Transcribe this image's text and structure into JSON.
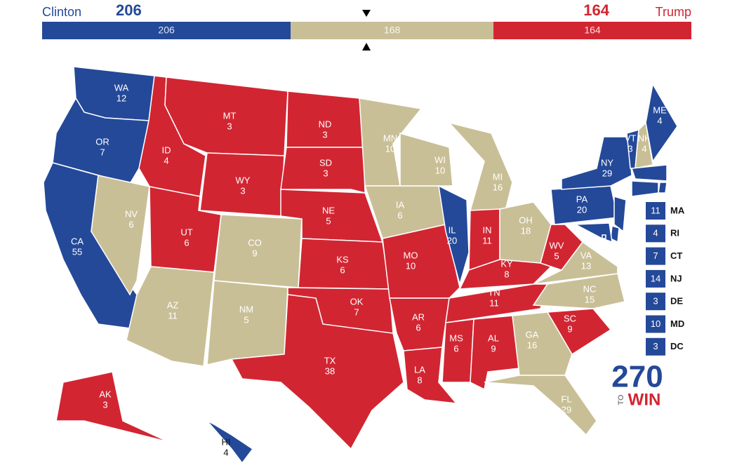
{
  "header": {
    "left_name": "Clinton",
    "left_total": 206,
    "right_total": 164,
    "right_name": "Trump",
    "left_color": "#244999",
    "right_color": "#d22532"
  },
  "bar": [
    {
      "value": 206,
      "color": "#244999"
    },
    {
      "value": 168,
      "color": "#c9bf97"
    },
    {
      "value": 164,
      "color": "#d22532"
    }
  ],
  "states": [
    {
      "abbr": "WA",
      "votes": 12,
      "color": "#244999"
    },
    {
      "abbr": "OR",
      "votes": 7,
      "color": "#244999"
    },
    {
      "abbr": "CA",
      "votes": 55,
      "color": "#244999"
    },
    {
      "abbr": "NV",
      "votes": 6,
      "color": "#c9bf97"
    },
    {
      "abbr": "ID",
      "votes": 4,
      "color": "#d22532"
    },
    {
      "abbr": "MT",
      "votes": 3,
      "color": "#d22532"
    },
    {
      "abbr": "WY",
      "votes": 3,
      "color": "#d22532"
    },
    {
      "abbr": "UT",
      "votes": 6,
      "color": "#d22532"
    },
    {
      "abbr": "AZ",
      "votes": 11,
      "color": "#c9bf97"
    },
    {
      "abbr": "CO",
      "votes": 9,
      "color": "#c9bf97"
    },
    {
      "abbr": "NM",
      "votes": 5,
      "color": "#c9bf97"
    },
    {
      "abbr": "ND",
      "votes": 3,
      "color": "#d22532"
    },
    {
      "abbr": "SD",
      "votes": 3,
      "color": "#d22532"
    },
    {
      "abbr": "NE",
      "votes": 5,
      "color": "#d22532"
    },
    {
      "abbr": "KS",
      "votes": 6,
      "color": "#d22532"
    },
    {
      "abbr": "OK",
      "votes": 7,
      "color": "#d22532"
    },
    {
      "abbr": "TX",
      "votes": 38,
      "color": "#d22532"
    },
    {
      "abbr": "MN",
      "votes": 10,
      "color": "#c9bf97"
    },
    {
      "abbr": "IA",
      "votes": 6,
      "color": "#c9bf97"
    },
    {
      "abbr": "MO",
      "votes": 10,
      "color": "#d22532"
    },
    {
      "abbr": "AR",
      "votes": 6,
      "color": "#d22532"
    },
    {
      "abbr": "LA",
      "votes": 8,
      "color": "#d22532"
    },
    {
      "abbr": "WI",
      "votes": 10,
      "color": "#c9bf97"
    },
    {
      "abbr": "IL",
      "votes": 20,
      "color": "#244999"
    },
    {
      "abbr": "MI",
      "votes": 16,
      "color": "#c9bf97"
    },
    {
      "abbr": "IN",
      "votes": 11,
      "color": "#d22532"
    },
    {
      "abbr": "OH",
      "votes": 18,
      "color": "#c9bf97"
    },
    {
      "abbr": "KY",
      "votes": 8,
      "color": "#d22532"
    },
    {
      "abbr": "TN",
      "votes": 11,
      "color": "#d22532"
    },
    {
      "abbr": "MS",
      "votes": 6,
      "color": "#d22532"
    },
    {
      "abbr": "AL",
      "votes": 9,
      "color": "#d22532"
    },
    {
      "abbr": "GA",
      "votes": 16,
      "color": "#c9bf97"
    },
    {
      "abbr": "FL",
      "votes": 29,
      "color": "#c9bf97"
    },
    {
      "abbr": "SC",
      "votes": 9,
      "color": "#d22532"
    },
    {
      "abbr": "NC",
      "votes": 15,
      "color": "#c9bf97"
    },
    {
      "abbr": "VA",
      "votes": 13,
      "color": "#c9bf97"
    },
    {
      "abbr": "WV",
      "votes": 5,
      "color": "#d22532"
    },
    {
      "abbr": "PA",
      "votes": 20,
      "color": "#244999"
    },
    {
      "abbr": "NY",
      "votes": 29,
      "color": "#244999"
    },
    {
      "abbr": "VT",
      "votes": 3,
      "color": "#244999"
    },
    {
      "abbr": "NH",
      "votes": 4,
      "color": "#c9bf97"
    },
    {
      "abbr": "ME",
      "votes": 4,
      "color": "#244999"
    },
    {
      "abbr": "AK",
      "votes": 3,
      "color": "#d22532"
    },
    {
      "abbr": "HI",
      "votes": 4,
      "color": "#244999"
    },
    {
      "abbr": "MA",
      "votes": 11,
      "color": "#244999"
    },
    {
      "abbr": "RI",
      "votes": 4,
      "color": "#244999"
    },
    {
      "abbr": "CT",
      "votes": 7,
      "color": "#244999"
    },
    {
      "abbr": "NJ",
      "votes": 14,
      "color": "#244999"
    },
    {
      "abbr": "DE",
      "votes": 3,
      "color": "#244999"
    },
    {
      "abbr": "MD",
      "votes": 10,
      "color": "#244999"
    },
    {
      "abbr": "DC",
      "votes": 3,
      "color": "#244999"
    }
  ],
  "logo": {
    "number": "270",
    "to": "TO",
    "win": "WIN"
  }
}
